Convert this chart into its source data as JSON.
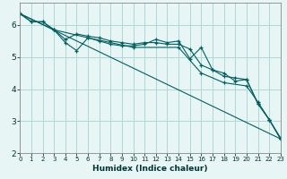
{
  "xlabel": "Humidex (Indice chaleur)",
  "ylabel": "",
  "background_color": "#e8f5f5",
  "grid_color": "#b0d8d8",
  "line_color": "#006060",
  "xlim": [
    0,
    23
  ],
  "ylim": [
    2.0,
    6.7
  ],
  "yticks": [
    2,
    3,
    4,
    5,
    6
  ],
  "xticks": [
    0,
    1,
    2,
    3,
    4,
    5,
    6,
    7,
    8,
    9,
    10,
    11,
    12,
    13,
    14,
    15,
    16,
    17,
    18,
    19,
    20,
    21,
    22,
    23
  ],
  "lines": [
    {
      "x": [
        0,
        1,
        2,
        3,
        4,
        5,
        6,
        7,
        8,
        9,
        10,
        11,
        12,
        13,
        14,
        15,
        16,
        17,
        18,
        19,
        20,
        21,
        22,
        23
      ],
      "y": [
        6.35,
        6.1,
        6.1,
        5.85,
        5.45,
        5.2,
        5.6,
        5.5,
        5.4,
        5.35,
        5.35,
        5.4,
        5.55,
        5.45,
        5.5,
        4.95,
        5.3,
        4.6,
        4.5,
        4.25,
        4.3,
        3.55,
        3.05,
        2.45
      ]
    },
    {
      "x": [
        0,
        1,
        2,
        3,
        4,
        5,
        6,
        7,
        8,
        9,
        10,
        11,
        12,
        13,
        14,
        15,
        16,
        17,
        18,
        19,
        20,
        21,
        22,
        23
      ],
      "y": [
        6.35,
        6.1,
        6.1,
        5.85,
        5.55,
        5.72,
        5.65,
        5.6,
        5.5,
        5.45,
        5.4,
        5.45,
        5.45,
        5.4,
        5.4,
        5.25,
        4.75,
        4.6,
        4.4,
        4.35,
        4.3,
        3.55,
        3.05,
        2.48
      ]
    },
    {
      "x": [
        0,
        23
      ],
      "y": [
        6.35,
        2.45
      ]
    },
    {
      "x": [
        0,
        3,
        6,
        10,
        14,
        16,
        18,
        20,
        21,
        22,
        23
      ],
      "y": [
        6.35,
        5.85,
        5.6,
        5.3,
        5.3,
        4.5,
        4.2,
        4.1,
        3.6,
        3.05,
        2.45
      ]
    }
  ]
}
